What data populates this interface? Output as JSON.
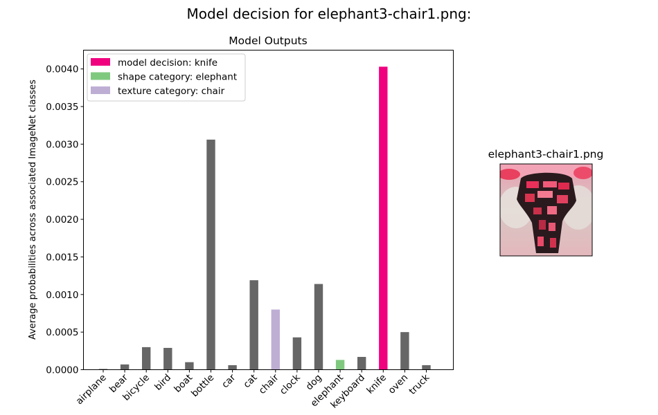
{
  "suptitle": "Model decision for elephant3-chair1.png:",
  "image_panel": {
    "title": "elephant3-chair1.png"
  },
  "chart_data": {
    "type": "bar",
    "title": "Model Outputs",
    "xlabel": "",
    "ylabel": "Average probabilities across associated ImageNet classes",
    "categories": [
      "airplane",
      "bear",
      "bicycle",
      "bird",
      "boat",
      "bottle",
      "car",
      "cat",
      "chair",
      "clock",
      "dog",
      "elephant",
      "keyboard",
      "knife",
      "oven",
      "truck"
    ],
    "values": [
      1e-05,
      7e-05,
      0.0003,
      0.00029,
      0.0001,
      0.00306,
      6e-05,
      0.00119,
      0.0008,
      0.00043,
      0.00114,
      0.00013,
      0.00017,
      0.00403,
      0.0005,
      6e-05
    ],
    "bar_colors": [
      "#666666",
      "#666666",
      "#666666",
      "#666666",
      "#666666",
      "#666666",
      "#666666",
      "#666666",
      "#beaed4",
      "#666666",
      "#666666",
      "#7fc97f",
      "#666666",
      "#f0027f",
      "#666666",
      "#666666"
    ],
    "ylim": [
      0,
      0.00425
    ],
    "yticks": [
      "0.0000",
      "0.0005",
      "0.0010",
      "0.0015",
      "0.0020",
      "0.0025",
      "0.0030",
      "0.0035",
      "0.0040"
    ],
    "ytick_values": [
      0,
      0.0005,
      0.001,
      0.0015,
      0.002,
      0.0025,
      0.003,
      0.0035,
      0.004
    ],
    "grid": false,
    "legend_placement": "top-left",
    "legend": [
      {
        "label": "model decision: knife",
        "color": "#f0027f"
      },
      {
        "label": "shape category: elephant",
        "color": "#7fc97f"
      },
      {
        "label": "texture category: chair",
        "color": "#beaed4"
      }
    ]
  }
}
